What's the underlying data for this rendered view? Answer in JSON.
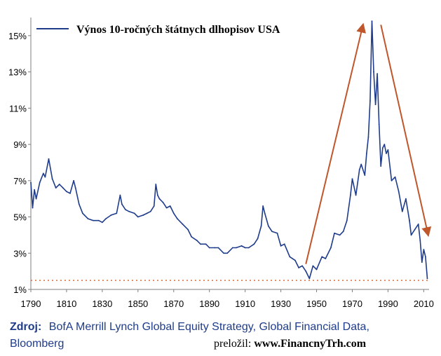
{
  "chart_data": {
    "type": "line",
    "title": "",
    "xlabel": "",
    "ylabel": "",
    "xlim": [
      1790,
      2013
    ],
    "ylim": [
      1,
      16
    ],
    "x_ticks": [
      1790,
      1810,
      1830,
      1850,
      1870,
      1890,
      1910,
      1930,
      1950,
      1970,
      1990,
      2010
    ],
    "y_ticks": [
      1,
      3,
      5,
      7,
      9,
      11,
      13,
      15
    ],
    "y_tick_labels": [
      "1%",
      "3%",
      "5%",
      "7%",
      "9%",
      "11%",
      "13%",
      "15%"
    ],
    "grid": false,
    "legend_position": "top-left",
    "series": [
      {
        "name": "Výnos 10-ročných štátnych dlhopisov USA",
        "color": "#1f3c8a",
        "x": [
          1790,
          1791,
          1792,
          1793,
          1795,
          1797,
          1798,
          1800,
          1802,
          1804,
          1806,
          1808,
          1810,
          1812,
          1814,
          1815,
          1817,
          1819,
          1820,
          1822,
          1825,
          1828,
          1830,
          1832,
          1835,
          1838,
          1840,
          1841,
          1843,
          1845,
          1848,
          1850,
          1853,
          1855,
          1857,
          1859,
          1860,
          1861,
          1862,
          1864,
          1866,
          1868,
          1870,
          1872,
          1875,
          1878,
          1880,
          1883,
          1885,
          1888,
          1890,
          1893,
          1895,
          1898,
          1900,
          1903,
          1905,
          1908,
          1910,
          1912,
          1915,
          1917,
          1919,
          1920,
          1921,
          1923,
          1925,
          1928,
          1930,
          1932,
          1935,
          1938,
          1940,
          1942,
          1944,
          1946,
          1948,
          1950,
          1953,
          1955,
          1958,
          1960,
          1963,
          1965,
          1967,
          1969,
          1970,
          1972,
          1974,
          1975,
          1977,
          1978,
          1979,
          1980,
          1981,
          1982,
          1983,
          1984,
          1985,
          1986,
          1987,
          1988,
          1989,
          1990,
          1992,
          1994,
          1996,
          1998,
          2000,
          2002,
          2003,
          2005,
          2007,
          2008,
          2009,
          2010,
          2011,
          2012
        ],
        "y": [
          6.9,
          5.5,
          6.5,
          6.0,
          6.9,
          7.4,
          7.2,
          8.2,
          7.1,
          6.6,
          6.8,
          6.6,
          6.4,
          6.3,
          7.0,
          6.6,
          5.7,
          5.2,
          5.1,
          4.9,
          4.8,
          4.8,
          4.7,
          4.9,
          5.1,
          5.2,
          6.2,
          5.7,
          5.4,
          5.3,
          5.2,
          5.0,
          5.1,
          5.2,
          5.3,
          5.6,
          6.8,
          6.2,
          6.0,
          5.8,
          5.5,
          5.6,
          5.2,
          4.9,
          4.6,
          4.3,
          3.9,
          3.7,
          3.5,
          3.5,
          3.3,
          3.3,
          3.3,
          3.0,
          3.0,
          3.3,
          3.3,
          3.4,
          3.3,
          3.3,
          3.5,
          3.8,
          4.5,
          5.6,
          5.2,
          4.5,
          4.2,
          4.1,
          3.4,
          3.5,
          2.8,
          2.6,
          2.2,
          2.3,
          2.0,
          1.6,
          2.3,
          2.1,
          2.8,
          2.7,
          3.3,
          4.1,
          4.0,
          4.2,
          4.8,
          6.2,
          7.1,
          6.2,
          7.6,
          7.9,
          7.3,
          8.5,
          9.4,
          11.4,
          15.8,
          13.0,
          11.2,
          12.9,
          10.1,
          7.8,
          8.8,
          9.0,
          8.5,
          8.7,
          7.0,
          7.2,
          6.4,
          5.3,
          6.0,
          4.8,
          4.0,
          4.3,
          4.6,
          3.7,
          2.5,
          3.2,
          2.8,
          1.6
        ],
        "reference_line": 1.5
      }
    ],
    "annotations": [
      "upward-trend-arrow",
      "downward-trend-arrow"
    ]
  },
  "legend": {
    "label": "Výnos 10-ročných štátnych dlhopisov USA"
  },
  "source": {
    "label": "Zdroj:",
    "text_line1": "BofA Merrill Lynch Global Equity Strategy, Global Financial Data,",
    "text_line2": "Bloomberg"
  },
  "credit": {
    "prefix": "preložil:",
    "site": "www.FinancnyTrh.com"
  },
  "colors": {
    "series_line": "#1f3c8a",
    "arrows": "#c0562b",
    "reference_line": "#e06a3a",
    "axis": "#7f7f7f"
  }
}
